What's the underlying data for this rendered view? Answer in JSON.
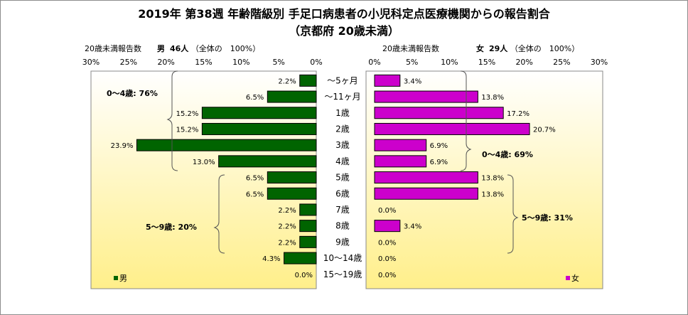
{
  "title_line1": "2019年 第38週 年齢階級別 手足口病患者の小児科定点医療機関からの報告割合",
  "title_line2": "（京都府 20歳未満）",
  "male_header": {
    "label": "20歳未満報告数",
    "sex": "男",
    "count": "46人",
    "total": "（全体の　100%）"
  },
  "female_header": {
    "label": "20歳未満報告数",
    "sex": "女",
    "count": "29人",
    "total": "（全体の　100%）"
  },
  "legend": {
    "male": "男",
    "female": "女"
  },
  "brackets": {
    "male_0_4": "0～4歳: 76%",
    "male_5_9": "5～9歳: 20%",
    "female_0_4": "0～4歳: 69%",
    "female_5_9": "5～9歳: 31%"
  },
  "colors": {
    "male": "#006400",
    "female": "#cc00cc",
    "plot_bg_top": "#ffffff",
    "plot_bg_bottom": "#ffef8a"
  },
  "chart_data": {
    "type": "bar",
    "orientation": "horizontal-population-pyramid",
    "categories": [
      "～5ヶ月",
      "～11ヶ月",
      "1歳",
      "2歳",
      "3歳",
      "4歳",
      "5歳",
      "6歳",
      "7歳",
      "8歳",
      "9歳",
      "10～14歳",
      "15～19歳"
    ],
    "x_ticks": [
      "30%",
      "25%",
      "20%",
      "15%",
      "10%",
      "5%",
      "0%"
    ],
    "x_ticks_right": [
      "0%",
      "5%",
      "10%",
      "15%",
      "20%",
      "25%",
      "30%"
    ],
    "xlim": [
      0,
      30
    ],
    "series": [
      {
        "name": "男",
        "values": [
          2.2,
          6.5,
          15.2,
          15.2,
          23.9,
          13.0,
          6.5,
          6.5,
          2.2,
          2.2,
          2.2,
          4.3,
          0.0
        ],
        "labels": [
          "2.2%",
          "6.5%",
          "15.2%",
          "15.2%",
          "23.9%",
          "13.0%",
          "6.5%",
          "6.5%",
          "2.2%",
          "2.2%",
          "2.2%",
          "4.3%",
          "0.0%"
        ]
      },
      {
        "name": "女",
        "values": [
          3.4,
          13.8,
          17.2,
          20.7,
          6.9,
          6.9,
          13.8,
          13.8,
          0.0,
          3.4,
          0.0,
          0.0,
          0.0
        ],
        "labels": [
          "3.4%",
          "13.8%",
          "17.2%",
          "20.7%",
          "6.9%",
          "6.9%",
          "13.8%",
          "13.8%",
          "0.0%",
          "3.4%",
          "0.0%",
          "0.0%",
          "0.0%"
        ]
      }
    ]
  }
}
